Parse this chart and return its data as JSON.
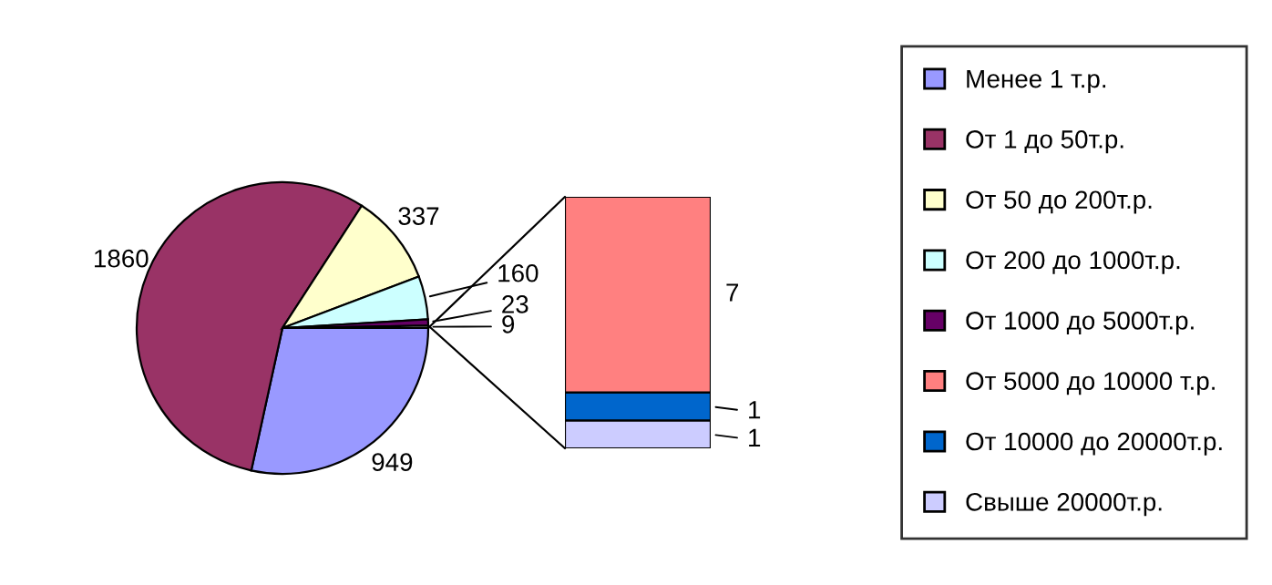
{
  "chart_data": [
    {
      "type": "pie",
      "categories": [
        "Менее 1 т.р.",
        "От 1 до 50т.р.",
        "От 50 до 200т.р.",
        "От 200 до 1000т.р.",
        "От 1000 до 5000т.р.",
        null
      ],
      "values": [
        949,
        1860,
        337,
        160,
        23,
        9
      ],
      "colors": [
        "#9999ff",
        "#993366",
        "#ffffcc",
        "#ccffff",
        "#660066",
        "#ffffff"
      ],
      "data_labels": true,
      "legend": "right"
    },
    {
      "type": "bar",
      "stacked": true,
      "categories": [
        null
      ],
      "series": [
        {
          "name": "Свыше 20000т.р.",
          "color": "#ccccff",
          "values": [
            1
          ]
        },
        {
          "name": "От 10000 до 20000т.р.",
          "color": "#0066cc",
          "values": [
            1
          ]
        },
        {
          "name": "От 5000 до 10000 т.р.",
          "color": "#ff8080",
          "values": [
            7
          ]
        }
      ],
      "data_labels": true,
      "legend": "right"
    }
  ]
}
